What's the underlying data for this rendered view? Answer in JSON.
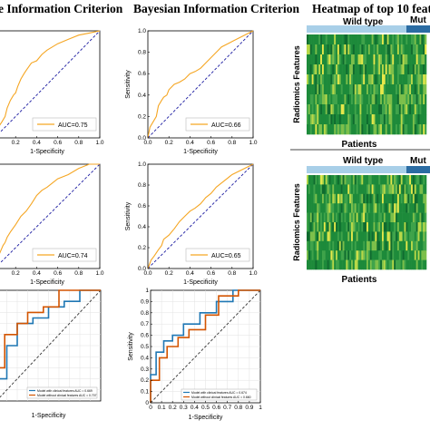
{
  "titles": {
    "col1": "e Information Criterion",
    "col2": "Bayesian Information Criterion",
    "col3": "Heatmap of top 10 featu"
  },
  "chart_data": [
    {
      "type": "line",
      "panel": "aic-top",
      "xlabel": "1-Specificity",
      "ylabel": "",
      "xlim": [
        0,
        1
      ],
      "ylim": [
        0,
        1
      ],
      "xticks": [
        "0.2",
        "0.4",
        "0.6",
        "0.8",
        "1.0"
      ],
      "series": [
        {
          "name": "AUC=0.75",
          "color": "#f5a623",
          "x": [
            0,
            0.02,
            0.05,
            0.07,
            0.1,
            0.12,
            0.15,
            0.18,
            0.2,
            0.22,
            0.25,
            0.28,
            0.3,
            0.35,
            0.4,
            0.45,
            0.5,
            0.55,
            0.6,
            0.7,
            0.8,
            0.9,
            1.0
          ],
          "y": [
            0,
            0.08,
            0.12,
            0.15,
            0.2,
            0.28,
            0.35,
            0.4,
            0.42,
            0.48,
            0.55,
            0.6,
            0.63,
            0.7,
            0.72,
            0.78,
            0.82,
            0.85,
            0.88,
            0.92,
            0.96,
            0.98,
            1.0
          ]
        }
      ],
      "diagonal": true
    },
    {
      "type": "line",
      "panel": "bic-top",
      "xlabel": "1-Specificity",
      "ylabel": "Sensitivity",
      "xlim": [
        0,
        1
      ],
      "ylim": [
        0,
        1
      ],
      "xticks": [
        "0.0",
        "0.2",
        "0.4",
        "0.6",
        "0.8",
        "1.0"
      ],
      "yticks": [
        "0.0",
        "0.2",
        "0.4",
        "0.6",
        "0.8",
        "1.0"
      ],
      "series": [
        {
          "name": "AUC=0.66",
          "color": "#f5a623",
          "x": [
            0,
            0.02,
            0.05,
            0.08,
            0.1,
            0.13,
            0.15,
            0.18,
            0.2,
            0.25,
            0.3,
            0.35,
            0.4,
            0.45,
            0.5,
            0.55,
            0.6,
            0.65,
            0.7,
            0.8,
            0.9,
            1.0
          ],
          "y": [
            0,
            0.1,
            0.15,
            0.2,
            0.3,
            0.35,
            0.38,
            0.4,
            0.45,
            0.5,
            0.52,
            0.55,
            0.6,
            0.62,
            0.65,
            0.7,
            0.75,
            0.8,
            0.85,
            0.9,
            0.95,
            1.0
          ]
        }
      ],
      "diagonal": true
    },
    {
      "type": "line",
      "panel": "aic-mid",
      "xlabel": "1-Specificity",
      "ylabel": "",
      "xlim": [
        0,
        1
      ],
      "ylim": [
        0,
        1
      ],
      "xticks": [
        "0.2",
        "0.4",
        "0.6",
        "0.8",
        "1.0"
      ],
      "series": [
        {
          "name": "AUC=0.74",
          "color": "#f5a623",
          "x": [
            0,
            0.03,
            0.05,
            0.08,
            0.1,
            0.12,
            0.15,
            0.2,
            0.25,
            0.3,
            0.35,
            0.4,
            0.45,
            0.5,
            0.55,
            0.6,
            0.7,
            0.8,
            0.9,
            1.0
          ],
          "y": [
            0,
            0.1,
            0.15,
            0.22,
            0.25,
            0.3,
            0.35,
            0.42,
            0.5,
            0.55,
            0.62,
            0.7,
            0.75,
            0.78,
            0.82,
            0.86,
            0.9,
            0.96,
            1.0,
            1.0
          ]
        }
      ],
      "diagonal": true
    },
    {
      "type": "line",
      "panel": "bic-mid",
      "xlabel": "1-Specificity",
      "ylabel": "Sensitivity",
      "xlim": [
        0,
        1
      ],
      "ylim": [
        0,
        1
      ],
      "xticks": [
        "0.0",
        "0.2",
        "0.4",
        "0.6",
        "0.8",
        "1.0"
      ],
      "yticks": [
        "0.0",
        "0.2",
        "0.4",
        "0.6",
        "0.8",
        "1.0"
      ],
      "series": [
        {
          "name": "AUC=0.65",
          "color": "#f5a623",
          "x": [
            0,
            0.03,
            0.06,
            0.1,
            0.13,
            0.15,
            0.2,
            0.25,
            0.3,
            0.35,
            0.4,
            0.45,
            0.5,
            0.55,
            0.6,
            0.65,
            0.7,
            0.8,
            0.9,
            1.0
          ],
          "y": [
            0,
            0.08,
            0.12,
            0.18,
            0.22,
            0.28,
            0.32,
            0.38,
            0.45,
            0.5,
            0.55,
            0.58,
            0.62,
            0.68,
            0.72,
            0.78,
            0.82,
            0.9,
            0.95,
            1.0
          ]
        }
      ],
      "diagonal": true
    },
    {
      "type": "line",
      "panel": "aic-bottom",
      "xlabel": "1-Specificity",
      "ylabel": "",
      "xlim": [
        0,
        1
      ],
      "ylim": [
        0,
        1
      ],
      "series": [
        {
          "name": "Model with clinical features AUC = 0.669",
          "color": "#1f77b4",
          "x": [
            0,
            0,
            0.1,
            0.1,
            0.2,
            0.2,
            0.35,
            0.35,
            0.5,
            0.5,
            0.65,
            0.65,
            0.8,
            0.8,
            1.0
          ],
          "y": [
            0,
            0.2,
            0.2,
            0.5,
            0.5,
            0.7,
            0.7,
            0.75,
            0.75,
            0.85,
            0.85,
            0.9,
            0.9,
            1.0,
            1.0
          ]
        },
        {
          "name": "Model without clinical features AUC = 0.707",
          "color": "#d35400",
          "x": [
            0,
            0,
            0.08,
            0.08,
            0.2,
            0.2,
            0.3,
            0.3,
            0.45,
            0.45,
            0.6,
            0.6,
            0.8,
            0.8,
            1.0
          ],
          "y": [
            0,
            0.3,
            0.3,
            0.6,
            0.6,
            0.7,
            0.7,
            0.8,
            0.8,
            0.85,
            0.85,
            1.0,
            1.0,
            1.0,
            1.0
          ]
        }
      ],
      "diagonal": true
    },
    {
      "type": "line",
      "panel": "bic-bottom",
      "xlabel": "1-Specificity",
      "ylabel": "Sensitivity",
      "xlim": [
        0,
        1
      ],
      "ylim": [
        0,
        1
      ],
      "xticks": [
        "0",
        "0.1",
        "0.2",
        "0.3",
        "0.4",
        "0.5",
        "0.6",
        "0.7",
        "0.8",
        "0.9",
        "1"
      ],
      "yticks": [
        "0",
        "0.1",
        "0.2",
        "0.3",
        "0.4",
        "0.5",
        "0.6",
        "0.7",
        "0.8",
        "0.9",
        "1"
      ],
      "series": [
        {
          "name": "Model with clinical features AUC = 0.674",
          "color": "#1f77b4",
          "x": [
            0,
            0,
            0.05,
            0.05,
            0.12,
            0.12,
            0.2,
            0.2,
            0.3,
            0.3,
            0.45,
            0.45,
            0.6,
            0.6,
            0.75,
            0.75,
            1.0
          ],
          "y": [
            0,
            0.25,
            0.25,
            0.45,
            0.45,
            0.55,
            0.55,
            0.6,
            0.6,
            0.7,
            0.7,
            0.8,
            0.8,
            0.9,
            0.9,
            1.0,
            1.0
          ]
        },
        {
          "name": "Model without clinical features AUC = 0.660",
          "color": "#d35400",
          "x": [
            0,
            0,
            0.08,
            0.08,
            0.15,
            0.15,
            0.25,
            0.25,
            0.35,
            0.35,
            0.5,
            0.5,
            0.62,
            0.62,
            0.8,
            0.8,
            1.0
          ],
          "y": [
            0,
            0.2,
            0.2,
            0.4,
            0.4,
            0.5,
            0.5,
            0.58,
            0.58,
            0.65,
            0.65,
            0.78,
            0.78,
            0.95,
            0.95,
            1.0,
            1.0
          ]
        }
      ],
      "diagonal": true
    },
    {
      "type": "heatmap",
      "panel": "heatmap-top",
      "xlabel": "Patients",
      "ylabel": "Radiomics Features",
      "groups": [
        "Wild type",
        "Mut"
      ],
      "group_colors": [
        "#a8cfe8",
        "#2b6ca3"
      ]
    },
    {
      "type": "heatmap",
      "panel": "heatmap-bottom",
      "xlabel": "Patients",
      "ylabel": "Radiomics Features",
      "groups": [
        "Wild type",
        "Mut"
      ],
      "group_colors": [
        "#a8cfe8",
        "#2b6ca3"
      ]
    }
  ]
}
